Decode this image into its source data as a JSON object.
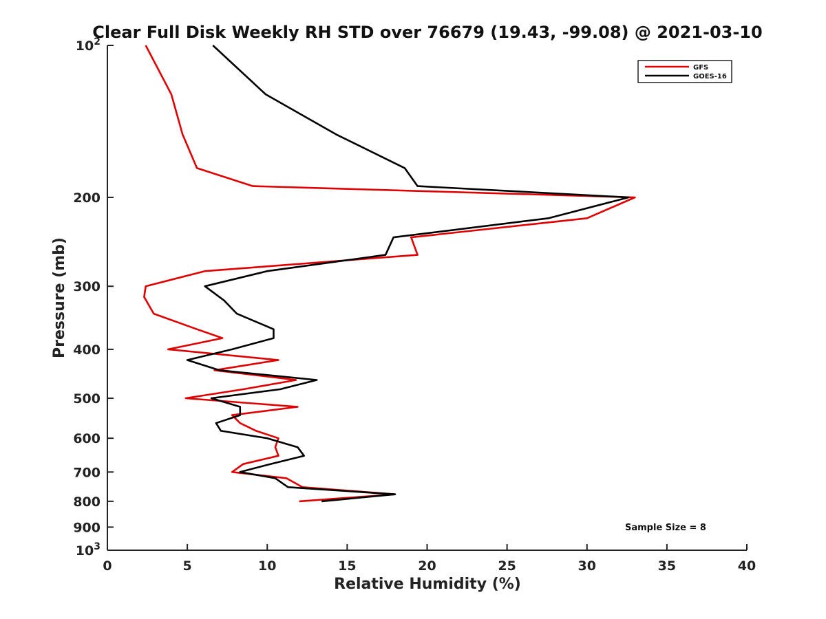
{
  "chart_data": {
    "type": "line",
    "title": "Clear Full Disk Weekly RH STD over 76679 (19.43, -99.08) @ 2021-03-10",
    "xlabel": "Relative Humidity (%)",
    "ylabel": "Pressure (mb)",
    "xlim": [
      0,
      40
    ],
    "ylim": [
      100,
      1000
    ],
    "y_scale": "log",
    "y_reversed": true,
    "x_ticks": [
      "0",
      "5",
      "10",
      "15",
      "20",
      "25",
      "30",
      "35",
      "40"
    ],
    "y_ticks": [
      {
        "value": 100,
        "base": "10",
        "exp": "2"
      },
      {
        "value": 200,
        "label": "200"
      },
      {
        "value": 300,
        "label": "300"
      },
      {
        "value": 400,
        "label": "400"
      },
      {
        "value": 500,
        "label": "500"
      },
      {
        "value": 600,
        "label": "600"
      },
      {
        "value": 700,
        "label": "700"
      },
      {
        "value": 800,
        "label": "800"
      },
      {
        "value": 900,
        "label": "900"
      },
      {
        "value": 1000,
        "base": "10",
        "exp": "3"
      }
    ],
    "legend_position": "top-right",
    "annotation": "Sample Size = 8",
    "series": [
      {
        "name": "GFS",
        "color": "#e00000",
        "points": [
          [
            2.4,
            100
          ],
          [
            4.0,
            125
          ],
          [
            4.7,
            150
          ],
          [
            5.6,
            175
          ],
          [
            9.1,
            190
          ],
          [
            33.0,
            200
          ],
          [
            30.0,
            220
          ],
          [
            19.0,
            240
          ],
          [
            19.4,
            260
          ],
          [
            6.1,
            280
          ],
          [
            2.4,
            300
          ],
          [
            2.3,
            315
          ],
          [
            2.9,
            340
          ],
          [
            5.6,
            365
          ],
          [
            7.2,
            380
          ],
          [
            3.8,
            400
          ],
          [
            10.7,
            420
          ],
          [
            6.7,
            440
          ],
          [
            11.8,
            460
          ],
          [
            8.5,
            480
          ],
          [
            4.9,
            500
          ],
          [
            11.9,
            520
          ],
          [
            7.8,
            540
          ],
          [
            8.3,
            560
          ],
          [
            9.3,
            580
          ],
          [
            10.7,
            600
          ],
          [
            10.5,
            625
          ],
          [
            10.7,
            650
          ],
          [
            8.5,
            675
          ],
          [
            7.8,
            700
          ],
          [
            11.2,
            720
          ],
          [
            12.2,
            750
          ],
          [
            18.0,
            775
          ],
          [
            12.0,
            800
          ]
        ]
      },
      {
        "name": "GOES-16",
        "color": "#000000",
        "points": [
          [
            6.6,
            100
          ],
          [
            9.9,
            125
          ],
          [
            14.3,
            150
          ],
          [
            18.6,
            175
          ],
          [
            19.4,
            190
          ],
          [
            32.6,
            200
          ],
          [
            27.6,
            220
          ],
          [
            17.9,
            240
          ],
          [
            17.4,
            260
          ],
          [
            10.0,
            280
          ],
          [
            6.1,
            300
          ],
          [
            7.3,
            320
          ],
          [
            8.1,
            340
          ],
          [
            10.4,
            365
          ],
          [
            10.4,
            380
          ],
          [
            7.8,
            400
          ],
          [
            5.0,
            420
          ],
          [
            7.0,
            440
          ],
          [
            13.1,
            460
          ],
          [
            10.8,
            480
          ],
          [
            6.5,
            500
          ],
          [
            8.3,
            520
          ],
          [
            8.3,
            540
          ],
          [
            6.8,
            560
          ],
          [
            7.1,
            580
          ],
          [
            10.0,
            600
          ],
          [
            11.9,
            625
          ],
          [
            12.3,
            650
          ],
          [
            10.2,
            675
          ],
          [
            8.3,
            700
          ],
          [
            10.5,
            720
          ],
          [
            11.3,
            750
          ],
          [
            18.0,
            775
          ],
          [
            13.4,
            800
          ]
        ]
      }
    ]
  }
}
